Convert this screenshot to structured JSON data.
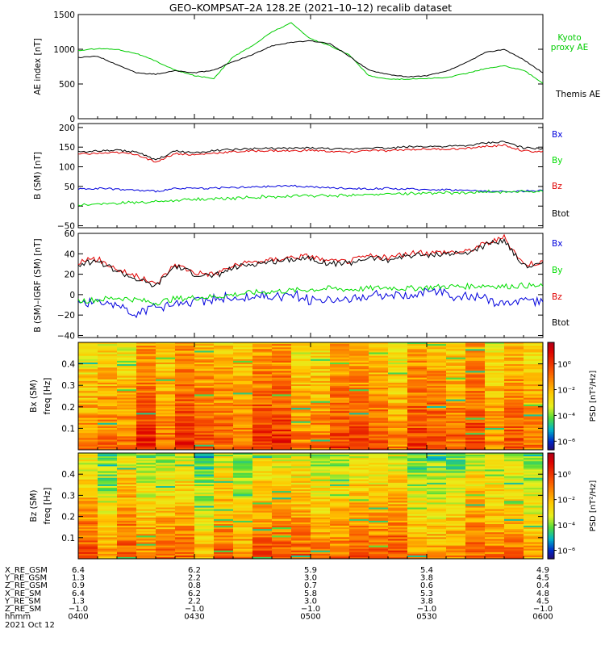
{
  "figure": {
    "title": "GEO–KOMPSAT–2A 128.2E (2021–10–12) recalib dataset",
    "date": "2021 Oct 12"
  },
  "colors": {
    "black": "#000000",
    "red": "#e00000",
    "green": "#00dd00",
    "blue": "#0000dd",
    "kyoto": "#00cc00"
  },
  "chart_data": [
    {
      "type": "line",
      "ylabel": "AE index [nT]",
      "ylim": [
        0,
        1500
      ],
      "yticks": [
        0,
        500,
        1000,
        1500
      ],
      "legend_placement": "right",
      "x": [
        "0400",
        "0405",
        "0410",
        "0415",
        "0420",
        "0425",
        "0430",
        "0435",
        "0440",
        "0445",
        "0450",
        "0455",
        "0500",
        "0505",
        "0510",
        "0515",
        "0520",
        "0525",
        "0530",
        "0535",
        "0540",
        "0545",
        "0550",
        "0555",
        "0600"
      ],
      "series": [
        {
          "name": "Kyoto proxy AE",
          "color_key": "kyoto",
          "values": [
            980,
            1010,
            1000,
            940,
            830,
            700,
            620,
            580,
            890,
            1050,
            1250,
            1380,
            1150,
            1050,
            920,
            620,
            570,
            570,
            580,
            590,
            650,
            720,
            760,
            700,
            510
          ]
        },
        {
          "name": "Themis AE",
          "color_key": "black",
          "values": [
            880,
            900,
            780,
            660,
            640,
            690,
            660,
            700,
            820,
            920,
            1050,
            1100,
            1120,
            1080,
            900,
            700,
            640,
            600,
            620,
            680,
            800,
            950,
            1000,
            850,
            660
          ]
        }
      ]
    },
    {
      "type": "line",
      "ylabel": "B (SM) [nT]",
      "ylim": [
        -55,
        210
      ],
      "yticks": [
        -50,
        0,
        50,
        100,
        150,
        200
      ],
      "legend_placement": "right",
      "x": [
        "0400",
        "0405",
        "0410",
        "0415",
        "0420",
        "0425",
        "0430",
        "0435",
        "0440",
        "0445",
        "0450",
        "0455",
        "0500",
        "0505",
        "0510",
        "0515",
        "0520",
        "0525",
        "0530",
        "0535",
        "0540",
        "0545",
        "0550",
        "0555",
        "0600"
      ],
      "series": [
        {
          "name": "Bx",
          "color_key": "blue",
          "values": [
            44,
            45,
            43,
            40,
            38,
            44,
            45,
            46,
            47,
            48,
            50,
            52,
            49,
            46,
            45,
            44,
            45,
            43,
            42,
            42,
            40,
            38,
            36,
            38,
            40
          ]
        },
        {
          "name": "By",
          "color_key": "green",
          "values": [
            3,
            5,
            8,
            10,
            12,
            15,
            17,
            18,
            20,
            22,
            24,
            25,
            26,
            27,
            28,
            30,
            31,
            32,
            33,
            34,
            35,
            36,
            36,
            37,
            37
          ]
        },
        {
          "name": "Bz",
          "color_key": "red",
          "values": [
            132,
            134,
            136,
            132,
            112,
            134,
            130,
            135,
            138,
            140,
            141,
            140,
            142,
            139,
            137,
            142,
            140,
            144,
            145,
            145,
            146,
            152,
            155,
            140,
            138
          ]
        },
        {
          "name": "Btot",
          "color_key": "black",
          "values": [
            138,
            140,
            142,
            138,
            117,
            140,
            136,
            141,
            144,
            146,
            147,
            147,
            148,
            146,
            144,
            149,
            147,
            151,
            152,
            152,
            153,
            160,
            164,
            148,
            146
          ]
        }
      ]
    },
    {
      "type": "line",
      "ylabel": "B (SM)–IGRF (SM) [nT]",
      "ylim": [
        -42,
        60
      ],
      "yticks": [
        -40,
        -20,
        0,
        20,
        40,
        60
      ],
      "legend_placement": "right",
      "x": [
        "0400",
        "0405",
        "0410",
        "0415",
        "0420",
        "0425",
        "0430",
        "0435",
        "0440",
        "0445",
        "0450",
        "0455",
        "0500",
        "0505",
        "0510",
        "0515",
        "0520",
        "0525",
        "0530",
        "0535",
        "0540",
        "0545",
        "0550",
        "0555",
        "0600"
      ],
      "series": [
        {
          "name": "Bx",
          "color_key": "blue",
          "values": [
            -5,
            -6,
            -10,
            -18,
            -12,
            -8,
            -5,
            -3,
            -4,
            -2,
            -2,
            0,
            -5,
            -8,
            -3,
            -2,
            0,
            1,
            2,
            1,
            -2,
            -4,
            -10,
            -5,
            -8
          ]
        },
        {
          "name": "By",
          "color_key": "green",
          "values": [
            -6,
            -5,
            -3,
            -5,
            -8,
            -4,
            -3,
            -2,
            0,
            2,
            3,
            4,
            5,
            6,
            5,
            6,
            7,
            6,
            7,
            8,
            8,
            9,
            8,
            9,
            8
          ]
        },
        {
          "name": "Bz",
          "color_key": "red",
          "values": [
            32,
            35,
            25,
            18,
            10,
            30,
            22,
            20,
            28,
            32,
            34,
            37,
            38,
            32,
            33,
            38,
            36,
            40,
            41,
            42,
            42,
            50,
            56,
            30,
            32
          ]
        },
        {
          "name": "Btot",
          "color_key": "black",
          "values": [
            30,
            33,
            23,
            15,
            8,
            28,
            20,
            18,
            26,
            30,
            32,
            35,
            36,
            30,
            31,
            36,
            34,
            38,
            39,
            40,
            40,
            48,
            54,
            28,
            30
          ]
        }
      ]
    },
    {
      "type": "heatmap",
      "ylabel": "Bx (SM) freq [Hz]",
      "ylim": [
        0,
        0.5
      ],
      "yticks": [
        0.1,
        0.2,
        0.3,
        0.4
      ],
      "colorbar_label": "PSD [nT²/Hz]",
      "colorbar_ticks": [
        "10⁰",
        "10⁻²",
        "10⁻⁴",
        "10⁻⁶"
      ],
      "x_range": [
        "0400",
        "0600"
      ]
    },
    {
      "type": "heatmap",
      "ylabel": "Bz (SM) freq [Hz]",
      "ylim": [
        0,
        0.5
      ],
      "yticks": [
        0.1,
        0.2,
        0.3,
        0.4
      ],
      "colorbar_label": "PSD [nT²/Hz]",
      "colorbar_ticks": [
        "10⁰",
        "10⁻²",
        "10⁻⁴",
        "10⁻⁶"
      ],
      "x_range": [
        "0400",
        "0600"
      ]
    }
  ],
  "ephemeris": {
    "row_labels": [
      "X_RE_GSM",
      "Y_RE_GSM",
      "Z_RE_GSM",
      "X_RE_SM",
      "Y_RE_SM",
      "Z_RE_SM",
      "hhmm"
    ],
    "columns": [
      [
        "6.4",
        "1.3",
        "0.9",
        "6.4",
        "1.3",
        "−1.0",
        "0400"
      ],
      [
        "6.2",
        "2.2",
        "0.8",
        "6.2",
        "2.2",
        "−1.0",
        "0430"
      ],
      [
        "5.9",
        "3.0",
        "0.7",
        "5.8",
        "3.0",
        "−1.0",
        "0500"
      ],
      [
        "5.4",
        "3.8",
        "0.6",
        "5.3",
        "3.8",
        "−1.0",
        "0530"
      ],
      [
        "4.9",
        "4.5",
        "0.4",
        "4.8",
        "4.5",
        "−1.0",
        "0600"
      ]
    ]
  }
}
